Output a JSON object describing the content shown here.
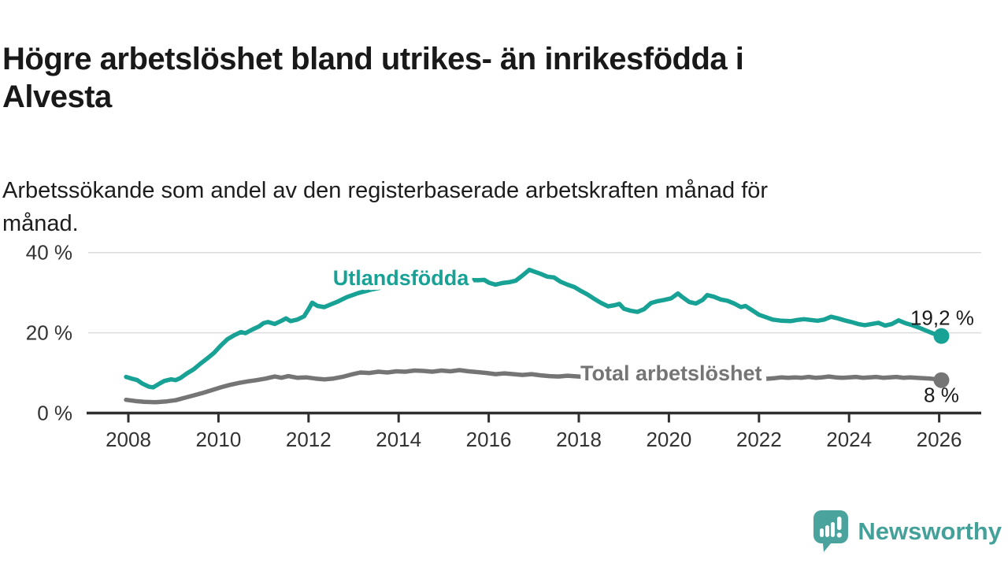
{
  "title": "Högre arbetslöshet bland utrikes- än inrikesfödda i\nAlvesta",
  "subtitle": "Arbetssökande som andel av den registerbaserade arbetskraften månad för\nmånad.",
  "branding": {
    "logo_text": "Newsworthy",
    "logo_color": "#44a19a"
  },
  "chart_data": {
    "type": "line",
    "title": "Högre arbetslöshet bland utrikes- än inrikesfödda i Alvesta",
    "subtitle": "Arbetssökande som andel av den registerbaserade arbetskraften månad för månad.",
    "grid": "horizontal-only",
    "x_axis": {
      "ticks": [
        2008,
        2010,
        2012,
        2014,
        2016,
        2018,
        2020,
        2022,
        2024,
        2026
      ],
      "range": [
        2007.9,
        2026.6
      ]
    },
    "y_axis": {
      "tick_values": [
        0,
        20,
        40
      ],
      "tick_labels": [
        "0 %",
        "20 %",
        "40 %"
      ],
      "range": [
        0,
        44
      ]
    },
    "colors": {
      "axis": "#2f2f2f",
      "gridline": "#dcdcdc",
      "tick_text": "#333333",
      "value_label_text": "#1a1a1a"
    },
    "series": [
      {
        "name": "Utlandsfödda",
        "color": "#17a295",
        "line_width": 5.5,
        "label_anchor": {
          "year": 2014.05,
          "value": 33.7
        },
        "end_label": "19,2 %",
        "end_value": 19.2,
        "points": [
          [
            2007.95,
            9.0
          ],
          [
            2008.1,
            8.5
          ],
          [
            2008.2,
            8.2
          ],
          [
            2008.3,
            7.4
          ],
          [
            2008.45,
            6.6
          ],
          [
            2008.55,
            6.4
          ],
          [
            2008.7,
            7.4
          ],
          [
            2008.8,
            8.0
          ],
          [
            2008.95,
            8.4
          ],
          [
            2009.05,
            8.2
          ],
          [
            2009.15,
            8.7
          ],
          [
            2009.3,
            9.9
          ],
          [
            2009.45,
            10.9
          ],
          [
            2009.6,
            12.3
          ],
          [
            2009.75,
            13.6
          ],
          [
            2009.9,
            15.0
          ],
          [
            2010.05,
            16.8
          ],
          [
            2010.2,
            18.4
          ],
          [
            2010.35,
            19.4
          ],
          [
            2010.5,
            20.2
          ],
          [
            2010.6,
            19.9
          ],
          [
            2010.75,
            20.8
          ],
          [
            2010.9,
            21.6
          ],
          [
            2011.0,
            22.4
          ],
          [
            2011.1,
            22.7
          ],
          [
            2011.25,
            22.2
          ],
          [
            2011.4,
            23.0
          ],
          [
            2011.5,
            23.6
          ],
          [
            2011.6,
            22.9
          ],
          [
            2011.75,
            23.3
          ],
          [
            2011.9,
            24.1
          ],
          [
            2012.0,
            25.9
          ],
          [
            2012.08,
            27.5
          ],
          [
            2012.2,
            26.7
          ],
          [
            2012.35,
            26.4
          ],
          [
            2012.5,
            27.1
          ],
          [
            2012.65,
            27.8
          ],
          [
            2012.85,
            28.9
          ],
          [
            2013.1,
            29.9
          ],
          [
            2013.4,
            30.8
          ],
          [
            2013.7,
            31.5
          ],
          [
            2014.0,
            31.9
          ],
          [
            2014.3,
            32.2
          ],
          [
            2014.6,
            32.5
          ],
          [
            2014.9,
            32.8
          ],
          [
            2015.2,
            33.0
          ],
          [
            2015.5,
            33.2
          ],
          [
            2015.75,
            33.1
          ],
          [
            2015.9,
            33.2
          ],
          [
            2016.0,
            32.5
          ],
          [
            2016.15,
            32.0
          ],
          [
            2016.3,
            32.4
          ],
          [
            2016.45,
            32.6
          ],
          [
            2016.6,
            33.0
          ],
          [
            2016.75,
            34.3
          ],
          [
            2016.9,
            35.7
          ],
          [
            2017.0,
            35.3
          ],
          [
            2017.15,
            34.7
          ],
          [
            2017.3,
            34.0
          ],
          [
            2017.45,
            33.8
          ],
          [
            2017.6,
            32.7
          ],
          [
            2017.75,
            32.0
          ],
          [
            2017.9,
            31.4
          ],
          [
            2018.05,
            30.4
          ],
          [
            2018.2,
            29.5
          ],
          [
            2018.35,
            28.4
          ],
          [
            2018.5,
            27.4
          ],
          [
            2018.65,
            26.6
          ],
          [
            2018.8,
            26.9
          ],
          [
            2018.9,
            27.2
          ],
          [
            2019.0,
            26.0
          ],
          [
            2019.15,
            25.5
          ],
          [
            2019.3,
            25.2
          ],
          [
            2019.45,
            25.9
          ],
          [
            2019.6,
            27.4
          ],
          [
            2019.75,
            27.9
          ],
          [
            2019.9,
            28.2
          ],
          [
            2020.05,
            28.6
          ],
          [
            2020.2,
            29.8
          ],
          [
            2020.3,
            28.9
          ],
          [
            2020.45,
            27.7
          ],
          [
            2020.6,
            27.3
          ],
          [
            2020.75,
            28.2
          ],
          [
            2020.85,
            29.4
          ],
          [
            2021.0,
            29.0
          ],
          [
            2021.15,
            28.3
          ],
          [
            2021.3,
            28.0
          ],
          [
            2021.45,
            27.3
          ],
          [
            2021.6,
            26.4
          ],
          [
            2021.7,
            26.7
          ],
          [
            2021.85,
            25.6
          ],
          [
            2022.0,
            24.5
          ],
          [
            2022.15,
            23.9
          ],
          [
            2022.3,
            23.3
          ],
          [
            2022.5,
            23.0
          ],
          [
            2022.7,
            22.9
          ],
          [
            2022.85,
            23.2
          ],
          [
            2023.0,
            23.4
          ],
          [
            2023.15,
            23.2
          ],
          [
            2023.3,
            23.0
          ],
          [
            2023.45,
            23.3
          ],
          [
            2023.6,
            24.0
          ],
          [
            2023.75,
            23.6
          ],
          [
            2023.9,
            23.1
          ],
          [
            2024.05,
            22.7
          ],
          [
            2024.2,
            22.2
          ],
          [
            2024.35,
            21.9
          ],
          [
            2024.5,
            22.2
          ],
          [
            2024.65,
            22.5
          ],
          [
            2024.8,
            21.8
          ],
          [
            2024.95,
            22.2
          ],
          [
            2025.1,
            23.1
          ],
          [
            2025.25,
            22.4
          ],
          [
            2025.4,
            21.9
          ],
          [
            2025.55,
            21.3
          ],
          [
            2025.7,
            20.6
          ],
          [
            2025.85,
            19.9
          ],
          [
            2026.0,
            19.4
          ],
          [
            2026.05,
            19.2
          ]
        ]
      },
      {
        "name": "Total arbetslöshet",
        "color": "#757575",
        "line_width": 5.5,
        "label_anchor": {
          "year": 2020.05,
          "value": 9.9
        },
        "end_label": "8 %",
        "end_value": 8.2,
        "points": [
          [
            2007.95,
            3.3
          ],
          [
            2008.15,
            3.0
          ],
          [
            2008.35,
            2.8
          ],
          [
            2008.6,
            2.7
          ],
          [
            2008.85,
            2.9
          ],
          [
            2009.05,
            3.2
          ],
          [
            2009.25,
            3.8
          ],
          [
            2009.45,
            4.4
          ],
          [
            2009.65,
            5.0
          ],
          [
            2009.85,
            5.7
          ],
          [
            2010.05,
            6.4
          ],
          [
            2010.25,
            7.0
          ],
          [
            2010.45,
            7.5
          ],
          [
            2010.65,
            7.9
          ],
          [
            2010.85,
            8.2
          ],
          [
            2011.05,
            8.6
          ],
          [
            2011.25,
            9.1
          ],
          [
            2011.4,
            8.8
          ],
          [
            2011.55,
            9.2
          ],
          [
            2011.75,
            8.8
          ],
          [
            2011.95,
            8.9
          ],
          [
            2012.15,
            8.6
          ],
          [
            2012.35,
            8.4
          ],
          [
            2012.55,
            8.6
          ],
          [
            2012.75,
            9.0
          ],
          [
            2012.95,
            9.6
          ],
          [
            2013.15,
            10.1
          ],
          [
            2013.35,
            10.0
          ],
          [
            2013.55,
            10.3
          ],
          [
            2013.75,
            10.1
          ],
          [
            2013.95,
            10.4
          ],
          [
            2014.15,
            10.3
          ],
          [
            2014.35,
            10.6
          ],
          [
            2014.55,
            10.5
          ],
          [
            2014.75,
            10.3
          ],
          [
            2014.95,
            10.6
          ],
          [
            2015.15,
            10.4
          ],
          [
            2015.35,
            10.7
          ],
          [
            2015.55,
            10.4
          ],
          [
            2015.75,
            10.2
          ],
          [
            2015.95,
            10.0
          ],
          [
            2016.15,
            9.7
          ],
          [
            2016.35,
            9.9
          ],
          [
            2016.55,
            9.7
          ],
          [
            2016.75,
            9.5
          ],
          [
            2016.95,
            9.7
          ],
          [
            2017.15,
            9.4
          ],
          [
            2017.35,
            9.2
          ],
          [
            2017.55,
            9.1
          ],
          [
            2017.75,
            9.3
          ],
          [
            2018.0,
            9.1
          ],
          [
            2018.3,
            8.8
          ],
          [
            2018.6,
            8.6
          ],
          [
            2018.9,
            8.5
          ],
          [
            2019.2,
            8.4
          ],
          [
            2019.5,
            8.3
          ],
          [
            2019.8,
            8.5
          ],
          [
            2020.1,
            8.9
          ],
          [
            2020.35,
            9.4
          ],
          [
            2020.6,
            9.2
          ],
          [
            2020.9,
            9.0
          ],
          [
            2021.2,
            8.8
          ],
          [
            2021.5,
            8.7
          ],
          [
            2021.8,
            8.6
          ],
          [
            2022.1,
            8.5
          ],
          [
            2022.35,
            8.7
          ],
          [
            2022.5,
            8.9
          ],
          [
            2022.65,
            8.8
          ],
          [
            2022.8,
            8.9
          ],
          [
            2022.95,
            8.8
          ],
          [
            2023.1,
            9.0
          ],
          [
            2023.25,
            8.8
          ],
          [
            2023.4,
            8.9
          ],
          [
            2023.55,
            9.1
          ],
          [
            2023.7,
            8.9
          ],
          [
            2023.85,
            8.8
          ],
          [
            2024.0,
            8.9
          ],
          [
            2024.15,
            9.0
          ],
          [
            2024.3,
            8.8
          ],
          [
            2024.45,
            8.9
          ],
          [
            2024.6,
            9.0
          ],
          [
            2024.75,
            8.8
          ],
          [
            2024.9,
            8.9
          ],
          [
            2025.05,
            9.0
          ],
          [
            2025.2,
            8.8
          ],
          [
            2025.35,
            8.9
          ],
          [
            2025.5,
            8.8
          ],
          [
            2025.65,
            8.7
          ],
          [
            2025.8,
            8.6
          ],
          [
            2025.95,
            8.4
          ],
          [
            2026.05,
            8.2
          ]
        ]
      }
    ]
  }
}
